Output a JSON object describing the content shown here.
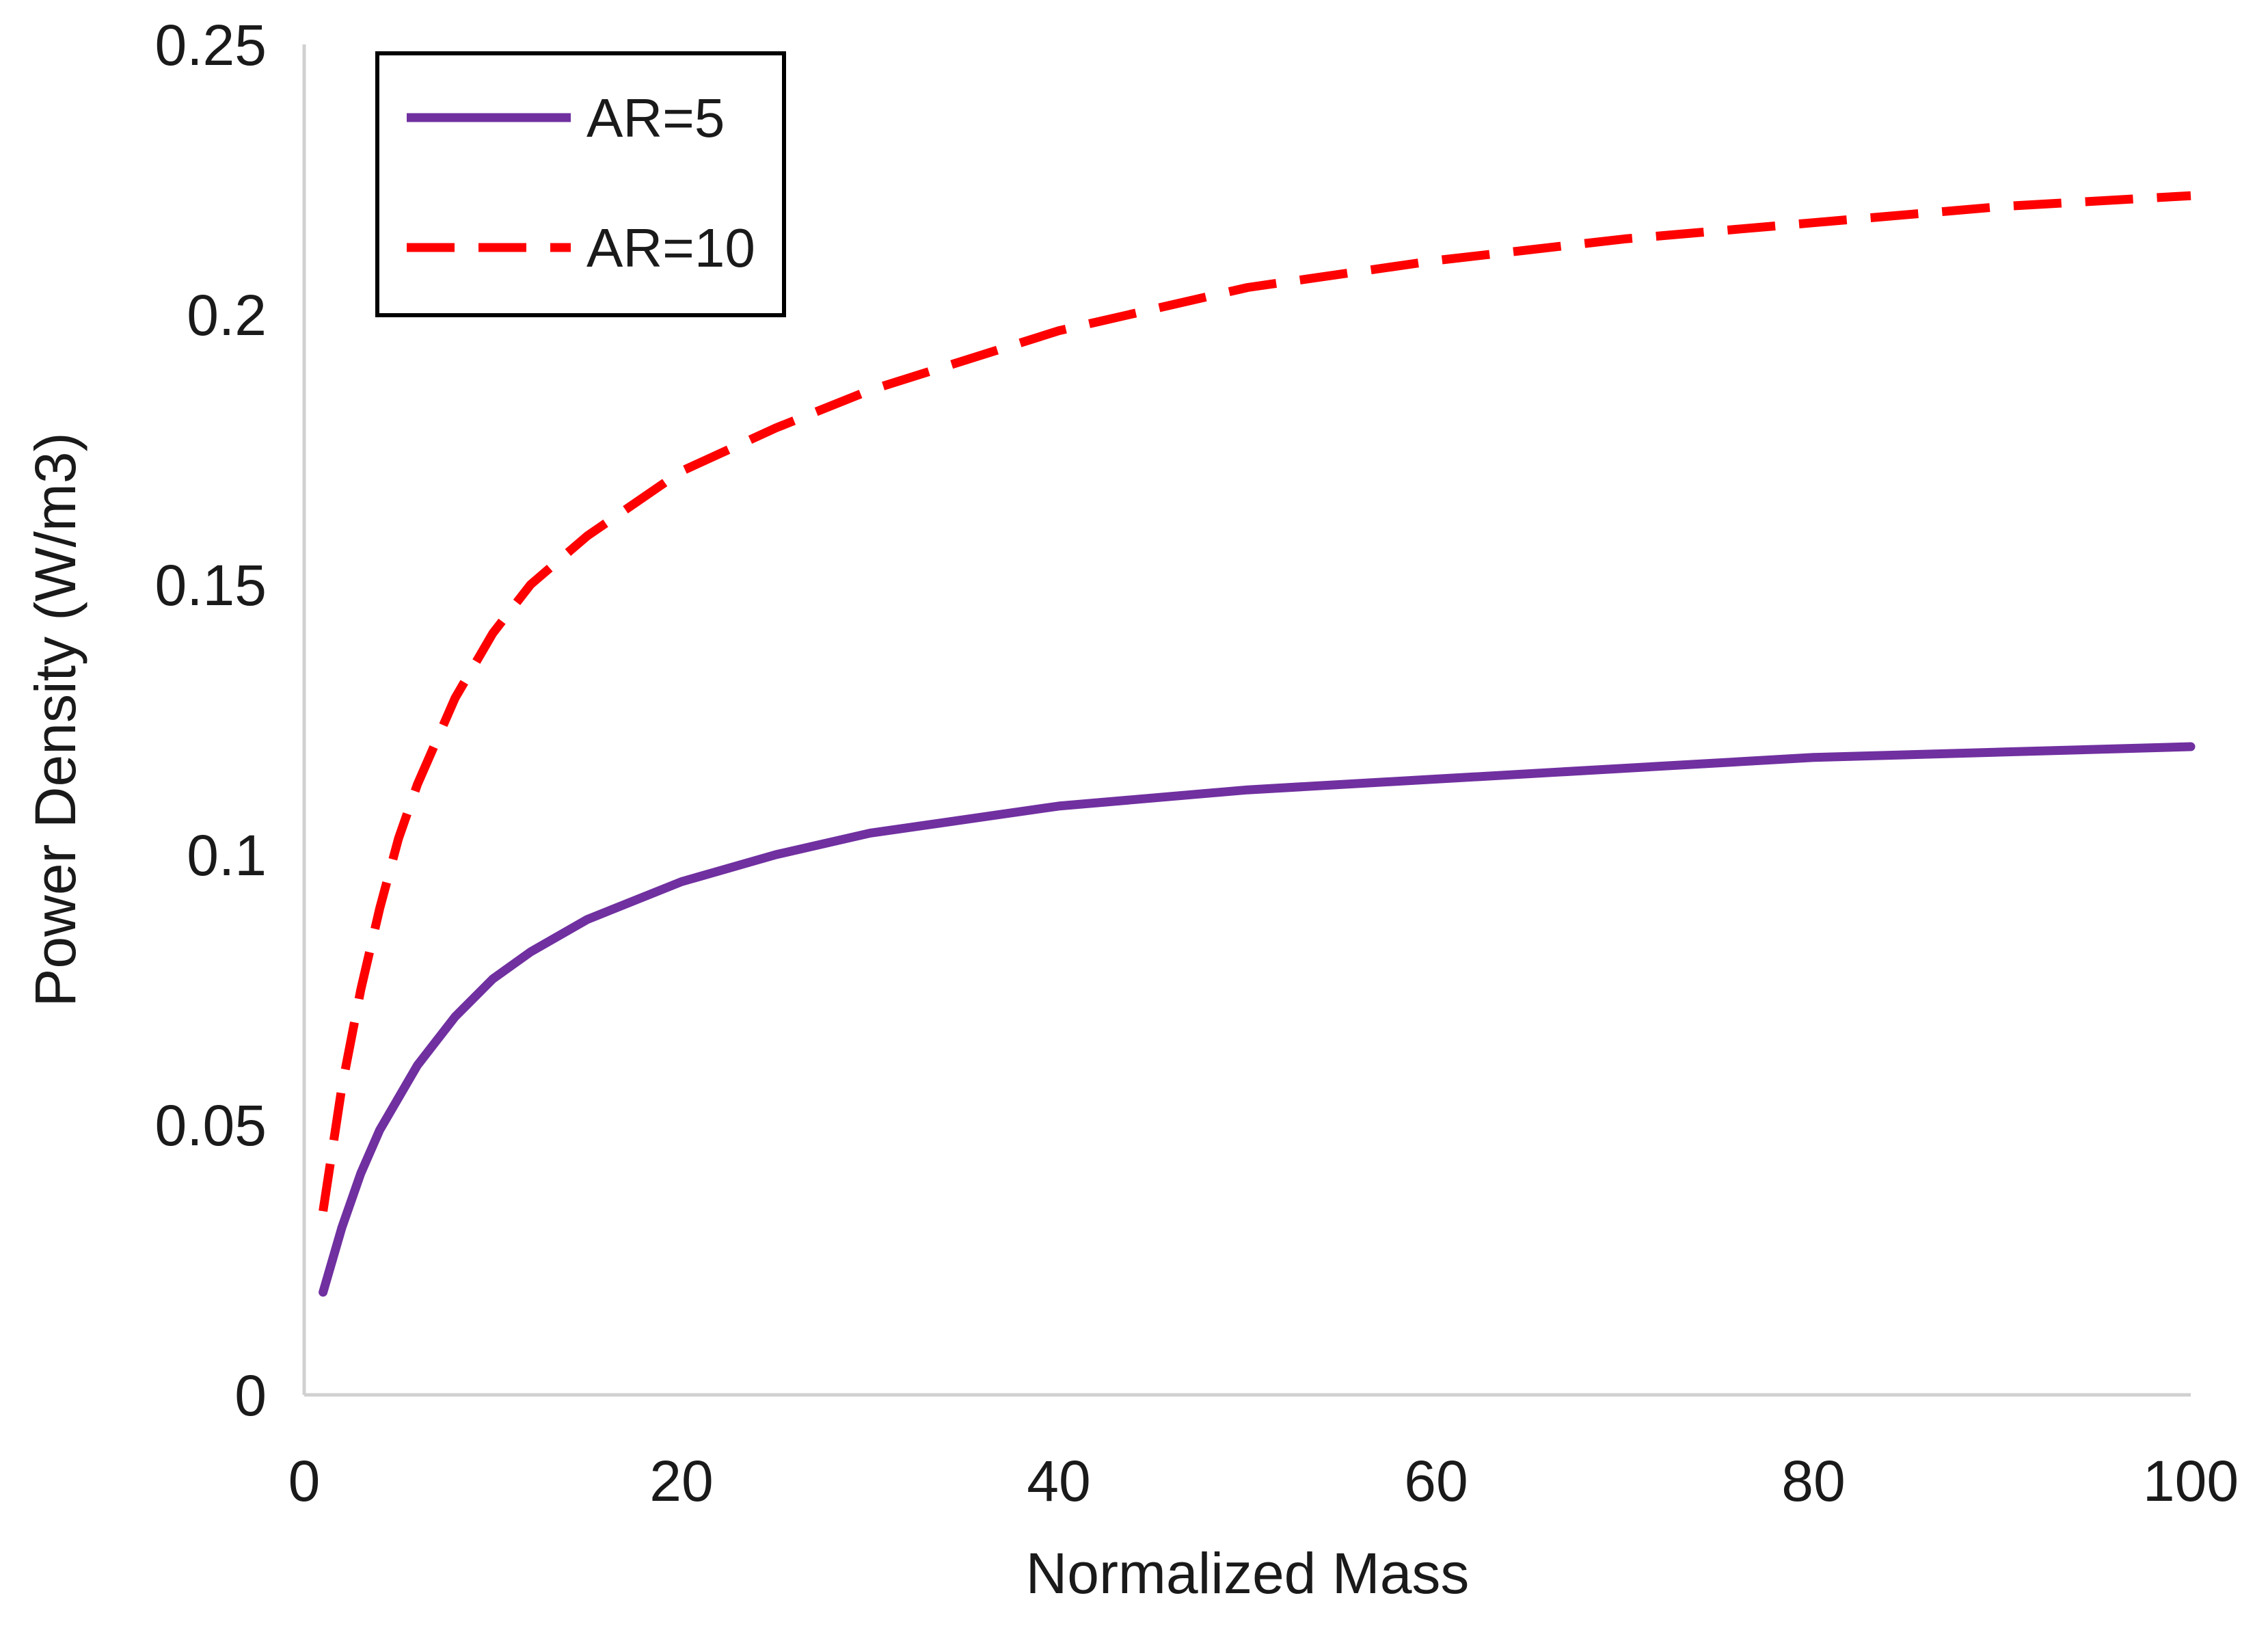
{
  "chart_data": {
    "type": "line",
    "title": "",
    "xlabel": "Normalized Mass",
    "ylabel": "Power Density (W/m3)",
    "xlim": [
      0,
      100
    ],
    "ylim": [
      0,
      0.25
    ],
    "xticks": [
      0,
      20,
      40,
      60,
      80,
      100
    ],
    "yticks": [
      0,
      0.05,
      0.1,
      0.15,
      0.2,
      0.25
    ],
    "xtick_labels": [
      "0",
      "20",
      "40",
      "60",
      "80",
      "100"
    ],
    "ytick_labels": [
      "0",
      "0.05",
      "0.1",
      "0.15",
      "0.2",
      "0.25"
    ],
    "grid": false,
    "legend_position": "top-left",
    "series": [
      {
        "name": "AR=5",
        "style": "solid",
        "color": "#7030A0",
        "x": [
          1,
          2,
          3,
          4,
          5,
          6,
          8,
          10,
          12,
          15,
          20,
          25,
          30,
          40,
          50,
          60,
          70,
          80,
          90,
          100
        ],
        "y": [
          0.019,
          0.031,
          0.041,
          0.049,
          0.055,
          0.061,
          0.07,
          0.077,
          0.082,
          0.088,
          0.095,
          0.1,
          0.104,
          0.109,
          0.112,
          0.114,
          0.116,
          0.118,
          0.119,
          0.12
        ]
      },
      {
        "name": "AR=10",
        "style": "dashed",
        "color": "#FF0000",
        "x": [
          1,
          2,
          3,
          4,
          5,
          6,
          8,
          10,
          12,
          15,
          20,
          25,
          30,
          40,
          50,
          60,
          70,
          80,
          90,
          100
        ],
        "y": [
          0.034,
          0.057,
          0.075,
          0.09,
          0.103,
          0.113,
          0.129,
          0.141,
          0.15,
          0.159,
          0.171,
          0.179,
          0.186,
          0.197,
          0.205,
          0.21,
          0.214,
          0.217,
          0.22,
          0.222
        ]
      }
    ]
  }
}
